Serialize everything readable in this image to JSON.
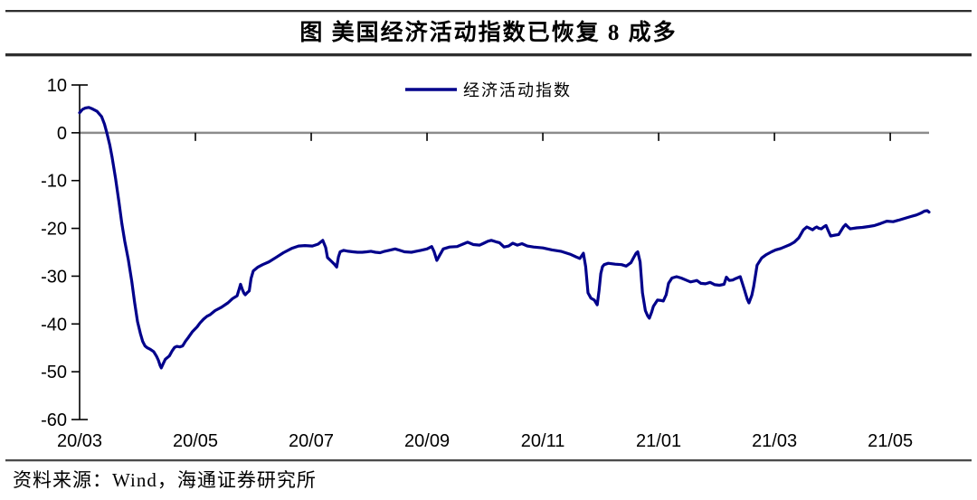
{
  "figure": {
    "title": "图 美国经济活动指数已恢复 8 成多",
    "source_note": "资料来源：Wind，海通证券研究所"
  },
  "chart_data": {
    "type": "line",
    "title": "图 美国经济活动指数已恢复 8 成多",
    "xlabel": "",
    "ylabel": "",
    "legend_position": "top-center",
    "grid": "horizontal zero-line only",
    "axis_color": "#000000",
    "zero_line_color": "#8c8c8c",
    "x_axis": {
      "unit": "months since 2020-03",
      "tick_positions": [
        0,
        2,
        4,
        6,
        8,
        10,
        12,
        14
      ],
      "tick_labels": [
        "20/03",
        "20/05",
        "20/07",
        "20/09",
        "20/11",
        "21/01",
        "21/03",
        "21/05"
      ],
      "xlim": [
        0,
        14.67
      ]
    },
    "y_axis": {
      "tick_values": [
        10,
        0,
        -10,
        -20,
        -30,
        -40,
        -50,
        -60
      ],
      "ylim": [
        -60,
        10
      ]
    },
    "series": [
      {
        "name": "经济活动指数",
        "color": "#00008B",
        "points": [
          [
            0,
            4.2
          ],
          [
            0.05,
            4.9
          ],
          [
            0.1,
            5.2
          ],
          [
            0.16,
            5.3
          ],
          [
            0.22,
            5.0
          ],
          [
            0.3,
            4.5
          ],
          [
            0.38,
            3.4
          ],
          [
            0.43,
            1.8
          ],
          [
            0.47,
            0
          ],
          [
            0.52,
            -2.5
          ],
          [
            0.56,
            -5
          ],
          [
            0.62,
            -9.5
          ],
          [
            0.68,
            -14.5
          ],
          [
            0.73,
            -19
          ],
          [
            0.78,
            -22.7
          ],
          [
            0.84,
            -26.5
          ],
          [
            0.9,
            -31
          ],
          [
            0.95,
            -35.5
          ],
          [
            1.0,
            -39.5
          ],
          [
            1.05,
            -42
          ],
          [
            1.09,
            -43.7
          ],
          [
            1.13,
            -44.6
          ],
          [
            1.17,
            -45
          ],
          [
            1.22,
            -45.3
          ],
          [
            1.28,
            -45.8
          ],
          [
            1.33,
            -46.8
          ],
          [
            1.36,
            -47.6
          ],
          [
            1.39,
            -48.7
          ],
          [
            1.41,
            -49.2
          ],
          [
            1.44,
            -48.4
          ],
          [
            1.48,
            -47.4
          ],
          [
            1.52,
            -47
          ],
          [
            1.55,
            -46.7
          ],
          [
            1.6,
            -45.6
          ],
          [
            1.64,
            -44.9
          ],
          [
            1.68,
            -44.7
          ],
          [
            1.73,
            -44.8
          ],
          [
            1.78,
            -44.6
          ],
          [
            1.83,
            -43.6
          ],
          [
            1.88,
            -42.8
          ],
          [
            1.95,
            -41.6
          ],
          [
            2.03,
            -40.6
          ],
          [
            2.08,
            -39.8
          ],
          [
            2.14,
            -39
          ],
          [
            2.2,
            -38.4
          ],
          [
            2.25,
            -38.1
          ],
          [
            2.34,
            -37.2
          ],
          [
            2.45,
            -36.5
          ],
          [
            2.56,
            -35.6
          ],
          [
            2.64,
            -34.7
          ],
          [
            2.72,
            -34.1
          ],
          [
            2.76,
            -32.5
          ],
          [
            2.78,
            -31.7
          ],
          [
            2.81,
            -32.8
          ],
          [
            2.84,
            -33.6
          ],
          [
            2.86,
            -33.9
          ],
          [
            2.9,
            -33.4
          ],
          [
            2.93,
            -33.1
          ],
          [
            2.96,
            -30.5
          ],
          [
            3.0,
            -28.9
          ],
          [
            3.08,
            -28.1
          ],
          [
            3.16,
            -27.6
          ],
          [
            3.27,
            -27
          ],
          [
            3.39,
            -26.1
          ],
          [
            3.52,
            -25.1
          ],
          [
            3.66,
            -24.2
          ],
          [
            3.78,
            -23.7
          ],
          [
            3.89,
            -23.6
          ],
          [
            4.02,
            -23.7
          ],
          [
            4.12,
            -23.3
          ],
          [
            4.2,
            -22.5
          ],
          [
            4.25,
            -24
          ],
          [
            4.28,
            -26.1
          ],
          [
            4.34,
            -26.8
          ],
          [
            4.4,
            -27.5
          ],
          [
            4.44,
            -28.1
          ],
          [
            4.47,
            -26
          ],
          [
            4.5,
            -24.9
          ],
          [
            4.56,
            -24.6
          ],
          [
            4.64,
            -24.8
          ],
          [
            4.72,
            -24.9
          ],
          [
            4.8,
            -25
          ],
          [
            4.88,
            -25
          ],
          [
            4.96,
            -24.9
          ],
          [
            5.03,
            -24.8
          ],
          [
            5.11,
            -25
          ],
          [
            5.19,
            -25.1
          ],
          [
            5.27,
            -24.8
          ],
          [
            5.34,
            -24.6
          ],
          [
            5.45,
            -24.3
          ],
          [
            5.53,
            -24.6
          ],
          [
            5.61,
            -24.9
          ],
          [
            5.73,
            -25
          ],
          [
            5.81,
            -24.8
          ],
          [
            5.89,
            -24.6
          ],
          [
            6.0,
            -24.3
          ],
          [
            6.08,
            -23.8
          ],
          [
            6.12,
            -24.8
          ],
          [
            6.17,
            -26.7
          ],
          [
            6.22,
            -25.6
          ],
          [
            6.28,
            -24.3
          ],
          [
            6.39,
            -23.9
          ],
          [
            6.52,
            -23.8
          ],
          [
            6.62,
            -23.3
          ],
          [
            6.7,
            -22.9
          ],
          [
            6.8,
            -23.4
          ],
          [
            6.91,
            -23.5
          ],
          [
            6.98,
            -23.1
          ],
          [
            7.05,
            -22.7
          ],
          [
            7.11,
            -22.5
          ],
          [
            7.19,
            -22.8
          ],
          [
            7.25,
            -23
          ],
          [
            7.33,
            -23.9
          ],
          [
            7.41,
            -23.7
          ],
          [
            7.48,
            -23.1
          ],
          [
            7.56,
            -23.5
          ],
          [
            7.64,
            -23.2
          ],
          [
            7.73,
            -23.7
          ],
          [
            7.84,
            -23.9
          ],
          [
            8.0,
            -24.1
          ],
          [
            8.16,
            -24.5
          ],
          [
            8.31,
            -24.8
          ],
          [
            8.47,
            -25.4
          ],
          [
            8.58,
            -26
          ],
          [
            8.64,
            -26.3
          ],
          [
            8.7,
            -25.2
          ],
          [
            8.74,
            -28
          ],
          [
            8.78,
            -33.5
          ],
          [
            8.83,
            -34.6
          ],
          [
            8.89,
            -35
          ],
          [
            8.94,
            -36
          ],
          [
            8.97,
            -33
          ],
          [
            9.0,
            -29.5
          ],
          [
            9.03,
            -28
          ],
          [
            9.06,
            -27.6
          ],
          [
            9.13,
            -27.3
          ],
          [
            9.25,
            -27.5
          ],
          [
            9.36,
            -27.6
          ],
          [
            9.44,
            -27.9
          ],
          [
            9.52,
            -27.2
          ],
          [
            9.56,
            -26.3
          ],
          [
            9.61,
            -25.2
          ],
          [
            9.64,
            -24.9
          ],
          [
            9.68,
            -27
          ],
          [
            9.72,
            -33.5
          ],
          [
            9.77,
            -37.2
          ],
          [
            9.81,
            -38.3
          ],
          [
            9.84,
            -38.8
          ],
          [
            9.88,
            -37.5
          ],
          [
            9.91,
            -36.3
          ],
          [
            9.98,
            -35
          ],
          [
            10.05,
            -35.1
          ],
          [
            10.08,
            -35.2
          ],
          [
            10.13,
            -33.9
          ],
          [
            10.17,
            -31.5
          ],
          [
            10.23,
            -30.4
          ],
          [
            10.31,
            -30.1
          ],
          [
            10.39,
            -30.4
          ],
          [
            10.47,
            -30.8
          ],
          [
            10.55,
            -31.2
          ],
          [
            10.63,
            -31
          ],
          [
            10.66,
            -30.9
          ],
          [
            10.73,
            -31.5
          ],
          [
            10.81,
            -31.6
          ],
          [
            10.89,
            -31.3
          ],
          [
            10.97,
            -31.8
          ],
          [
            11.05,
            -31.9
          ],
          [
            11.13,
            -31.7
          ],
          [
            11.17,
            -30.2
          ],
          [
            11.22,
            -30.9
          ],
          [
            11.28,
            -30.8
          ],
          [
            11.33,
            -30.5
          ],
          [
            11.41,
            -30.1
          ],
          [
            11.48,
            -32.8
          ],
          [
            11.53,
            -34.8
          ],
          [
            11.56,
            -35.6
          ],
          [
            11.61,
            -34
          ],
          [
            11.64,
            -32.2
          ],
          [
            11.7,
            -27.7
          ],
          [
            11.78,
            -26.2
          ],
          [
            11.86,
            -25.5
          ],
          [
            11.95,
            -24.9
          ],
          [
            12.02,
            -24.5
          ],
          [
            12.11,
            -24.2
          ],
          [
            12.17,
            -23.9
          ],
          [
            12.27,
            -23.4
          ],
          [
            12.34,
            -22.9
          ],
          [
            12.42,
            -22
          ],
          [
            12.5,
            -20.3
          ],
          [
            12.56,
            -19.7
          ],
          [
            12.61,
            -20
          ],
          [
            12.66,
            -20.3
          ],
          [
            12.7,
            -19.9
          ],
          [
            12.73,
            -19.7
          ],
          [
            12.77,
            -20
          ],
          [
            12.81,
            -20.1
          ],
          [
            12.85,
            -19.7
          ],
          [
            12.89,
            -19.4
          ],
          [
            12.93,
            -20.5
          ],
          [
            12.97,
            -21.6
          ],
          [
            13.05,
            -21.4
          ],
          [
            13.11,
            -21.3
          ],
          [
            13.19,
            -19.7
          ],
          [
            13.23,
            -19.2
          ],
          [
            13.27,
            -19.7
          ],
          [
            13.31,
            -20.1
          ],
          [
            13.42,
            -19.9
          ],
          [
            13.52,
            -19.8
          ],
          [
            13.63,
            -19.6
          ],
          [
            13.73,
            -19.4
          ],
          [
            13.83,
            -19
          ],
          [
            13.94,
            -18.5
          ],
          [
            14.05,
            -18.6
          ],
          [
            14.14,
            -18.3
          ],
          [
            14.25,
            -17.9
          ],
          [
            14.36,
            -17.5
          ],
          [
            14.45,
            -17.2
          ],
          [
            14.53,
            -16.8
          ],
          [
            14.59,
            -16.4
          ],
          [
            14.64,
            -16.3
          ],
          [
            14.67,
            -16.6
          ]
        ]
      }
    ]
  }
}
